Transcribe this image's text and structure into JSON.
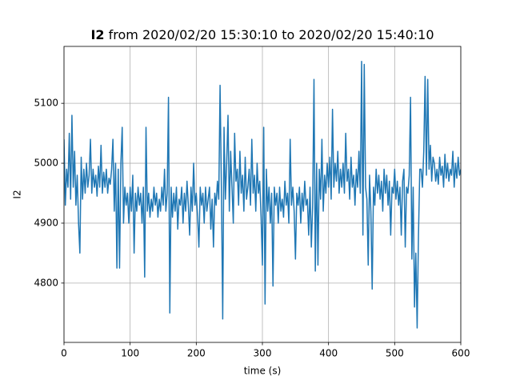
{
  "chart_data": {
    "type": "line",
    "title": [
      "I2",
      "from 2020/02/20 15:30:10 to 2020/02/20 15:40:10"
    ],
    "xlabel": "time (s)",
    "ylabel": "I2",
    "xlim": [
      0,
      600
    ],
    "ylim": [
      4701,
      5195
    ],
    "xticks": [
      0,
      100,
      200,
      300,
      400,
      500,
      600
    ],
    "yticks": [
      4800,
      4900,
      5000,
      5100
    ],
    "grid": true,
    "color": "#1f77b4",
    "x": [
      0,
      2,
      4,
      6,
      8,
      10,
      12,
      14,
      16,
      18,
      20,
      22,
      24,
      26,
      28,
      30,
      32,
      34,
      36,
      38,
      40,
      42,
      44,
      46,
      48,
      50,
      52,
      54,
      56,
      58,
      60,
      62,
      64,
      66,
      68,
      70,
      72,
      74,
      76,
      78,
      80,
      82,
      84,
      86,
      88,
      90,
      92,
      94,
      96,
      98,
      100,
      102,
      104,
      106,
      108,
      110,
      112,
      114,
      116,
      118,
      120,
      122,
      124,
      126,
      128,
      130,
      132,
      134,
      136,
      138,
      140,
      142,
      144,
      146,
      148,
      150,
      152,
      154,
      156,
      158,
      160,
      162,
      164,
      166,
      168,
      170,
      172,
      174,
      176,
      178,
      180,
      182,
      184,
      186,
      188,
      190,
      192,
      194,
      196,
      198,
      200,
      202,
      204,
      206,
      208,
      210,
      212,
      214,
      216,
      218,
      220,
      222,
      224,
      226,
      228,
      230,
      232,
      234,
      236,
      238,
      240,
      242,
      244,
      246,
      248,
      250,
      252,
      254,
      256,
      258,
      260,
      262,
      264,
      266,
      268,
      270,
      272,
      274,
      276,
      278,
      280,
      282,
      284,
      286,
      288,
      290,
      292,
      294,
      296,
      298,
      300,
      302,
      304,
      306,
      308,
      310,
      312,
      314,
      316,
      318,
      320,
      322,
      324,
      326,
      328,
      330,
      332,
      334,
      336,
      338,
      340,
      342,
      344,
      346,
      348,
      350,
      352,
      354,
      356,
      358,
      360,
      362,
      364,
      366,
      368,
      370,
      372,
      374,
      376,
      378,
      380,
      382,
      384,
      386,
      388,
      390,
      392,
      394,
      396,
      398,
      400,
      402,
      404,
      406,
      408,
      410,
      412,
      414,
      416,
      418,
      420,
      422,
      424,
      426,
      428,
      430,
      432,
      434,
      436,
      438,
      440,
      442,
      444,
      446,
      448,
      450,
      452,
      454,
      456,
      458,
      460,
      462,
      464,
      466,
      468,
      470,
      472,
      474,
      476,
      478,
      480,
      482,
      484,
      486,
      488,
      490,
      492,
      494,
      496,
      498,
      500,
      502,
      504,
      506,
      508,
      510,
      512,
      514,
      516,
      518,
      520,
      522,
      524,
      526,
      528,
      530,
      532,
      534,
      536,
      538,
      540,
      542,
      544,
      546,
      548,
      550,
      552,
      554,
      556,
      558,
      560,
      562,
      564,
      566,
      568,
      570,
      572,
      574,
      576,
      578,
      580,
      582,
      584,
      586,
      588,
      590,
      592,
      594,
      596,
      598,
      600
    ],
    "values": [
      5040,
      4930,
      4990,
      4960,
      5050,
      4940,
      5080,
      4960,
      5020,
      4930,
      4980,
      4900,
      4850,
      5010,
      4940,
      4990,
      4950,
      5000,
      4960,
      4980,
      5040,
      4950,
      4990,
      4960,
      4980,
      4945,
      4995,
      4960,
      5030,
      4950,
      4985,
      4960,
      4990,
      4950,
      4975,
      4965,
      4990,
      5040,
      4920,
      5000,
      4825,
      4990,
      4825,
      5000,
      5060,
      4900,
      4960,
      4930,
      4950,
      4900,
      4960,
      4920,
      4980,
      4850,
      4950,
      4920,
      4960,
      4930,
      4950,
      4900,
      4960,
      4810,
      5060,
      4920,
      4950,
      4910,
      4940,
      4920,
      4960,
      4930,
      4950,
      4910,
      4940,
      4920,
      4960,
      4930,
      4990,
      4920,
      4950,
      5110,
      4750,
      4960,
      4910,
      4950,
      4920,
      4960,
      4890,
      4940,
      4930,
      4960,
      4900,
      4950,
      4920,
      4970,
      4930,
      4880,
      4960,
      4920,
      5000,
      4930,
      4950,
      4910,
      4860,
      4960,
      4930,
      4950,
      4900,
      4960,
      4920,
      4940,
      4960,
      4890,
      4940,
      4860,
      4950,
      4930,
      4970,
      4940,
      5130,
      4960,
      4740,
      5060,
      4940,
      5000,
      5080,
      4920,
      5020,
      4960,
      4900,
      5050,
      4970,
      4990,
      4930,
      5020,
      4950,
      4980,
      4920,
      5010,
      4940,
      4960,
      4990,
      4930,
      5040,
      4950,
      4980,
      4920,
      5000,
      4950,
      4970,
      4910,
      4830,
      5060,
      4765,
      4990,
      4920,
      4960,
      4900,
      4950,
      4795,
      4960,
      4930,
      4950,
      4900,
      4960,
      4920,
      4940,
      4910,
      4970,
      4930,
      4950,
      4900,
      5040,
      4930,
      4960,
      4920,
      4840,
      4950,
      4930,
      4960,
      4900,
      4950,
      4920,
      4970,
      4930,
      4940,
      4880,
      4960,
      4860,
      4930,
      5140,
      4820,
      5000,
      4830,
      4990,
      4940,
      5040,
      4920,
      4980,
      4950,
      5000,
      4960,
      5010,
      4940,
      5090,
      4960,
      5000,
      4970,
      5020,
      4950,
      4990,
      4960,
      5000,
      4950,
      5050,
      4970,
      4990,
      4940,
      5010,
      4960,
      4980,
      4930,
      4990,
      4960,
      5020,
      4950,
      5170,
      4880,
      5165,
      4960,
      4940,
      4830,
      4980,
      4920,
      4790,
      4960,
      4930,
      4990,
      4950,
      4980,
      4940,
      4970,
      4920,
      4990,
      4950,
      4980,
      4930,
      4970,
      4880,
      4960,
      4950,
      4990,
      4940,
      4970,
      4930,
      4960,
      4880,
      4970,
      4990,
      4860,
      4960,
      4950,
      4980,
      5110,
      4840,
      4960,
      4760,
      4850,
      4725,
      4880,
      4990,
      4990,
      4960,
      5020,
      5145,
      4980,
      5140,
      4990,
      5030,
      4970,
      5010,
      5000,
      4970,
      4990,
      4965,
      5010,
      4980,
      4995,
      4960,
      5015,
      4975,
      5000,
      4970,
      4990,
      4980,
      5020,
      4960,
      5000,
      4975,
      5010,
      4980,
      4990
    ]
  }
}
